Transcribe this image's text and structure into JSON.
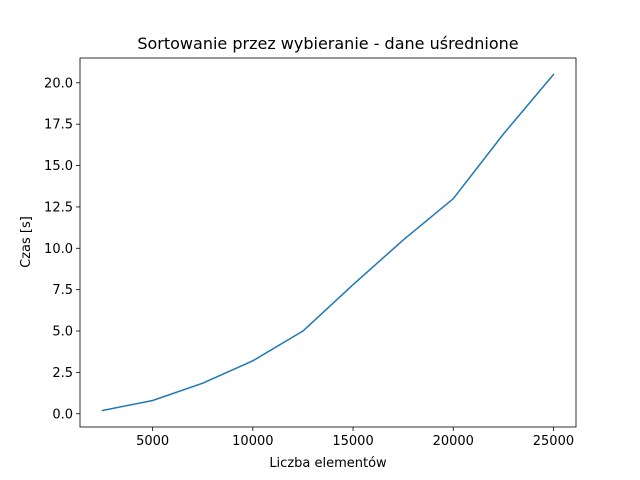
{
  "chart_data": {
    "type": "line",
    "title": "Sortowanie przez wybieranie - dane uśrednione",
    "xlabel": "Liczba elementów",
    "ylabel": "Czas [s]",
    "xlim": [
      1375,
      26125
    ],
    "ylim": [
      -0.8,
      21.5
    ],
    "x_ticks": [
      5000,
      10000,
      15000,
      20000,
      25000
    ],
    "y_ticks": [
      0.0,
      2.5,
      5.0,
      7.5,
      10.0,
      12.5,
      15.0,
      17.5,
      20.0
    ],
    "x_tick_labels": [
      "5000",
      "10000",
      "15000",
      "20000",
      "25000"
    ],
    "y_tick_labels": [
      "0.0",
      "2.5",
      "5.0",
      "7.5",
      "10.0",
      "12.5",
      "15.0",
      "17.5",
      "20.0"
    ],
    "grid": false,
    "legend": "none",
    "series": [
      {
        "color": "#1f77b4",
        "x": [
          2500,
          5000,
          7500,
          10000,
          12500,
          15000,
          17500,
          20000,
          22500,
          25000
        ],
        "y": [
          0.2,
          0.8,
          1.85,
          3.2,
          5.0,
          7.8,
          10.5,
          13.0,
          16.9,
          20.5
        ]
      }
    ]
  }
}
